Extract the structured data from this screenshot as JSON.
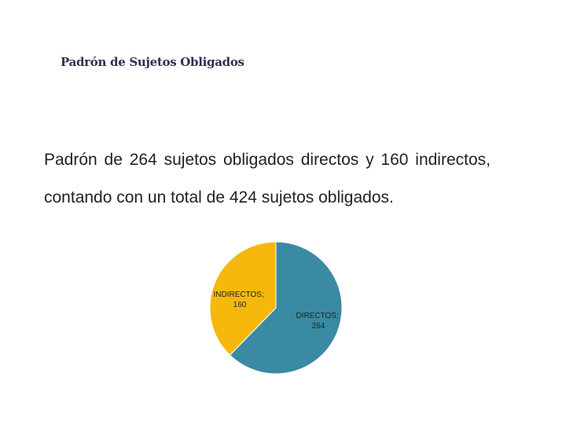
{
  "slide": {
    "title": "Padrón de Sujetos Obligados",
    "body": "Padrón de 264 sujetos obligados directos y 160 indirectos, contando con un total de 424 sujetos obligados."
  },
  "chart_data": {
    "type": "pie",
    "slices": [
      {
        "category": "DIRECTOS",
        "value": 264,
        "label_line1": "DIRECTOS;",
        "label_line2": "264",
        "color": "#3a8aa3"
      },
      {
        "category": "INDIRECTOS",
        "value": 160,
        "label_line1": "INDIRECTOS;",
        "label_line2": "160",
        "color": "#f7b80d"
      }
    ],
    "start": "12 o'clock",
    "direction": "clockwise",
    "legend": "none"
  }
}
